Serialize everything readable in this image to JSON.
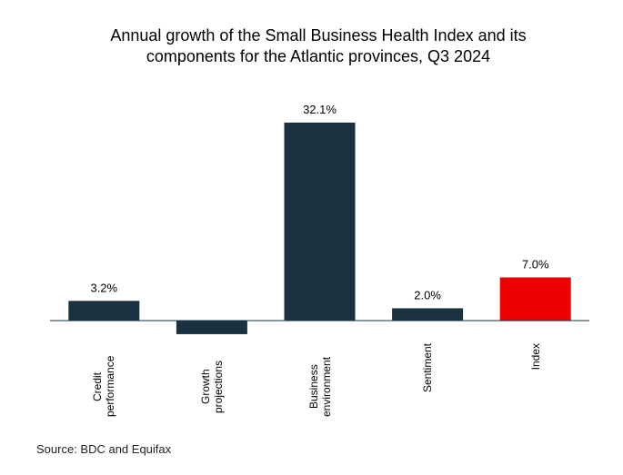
{
  "chart_data": {
    "type": "bar",
    "title": "Annual growth of the Small Business Health Index and its components for the Atlantic provinces, Q3 2024",
    "categories": [
      "Credit performance",
      "Growth projections",
      "Business environment",
      "Sentiment",
      "Index"
    ],
    "values": [
      3.2,
      -2.2,
      32.1,
      2.0,
      7.0
    ],
    "value_labels": [
      "3.2%",
      null,
      "32.1%",
      "2.0%",
      "7.0%"
    ],
    "colors": [
      "#1a3240",
      "#1a3240",
      "#1a3240",
      "#1a3240",
      "#ee0000"
    ],
    "source": "Source: BDC and Equifax"
  }
}
